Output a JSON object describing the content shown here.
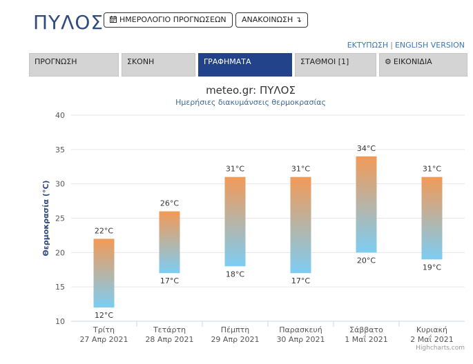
{
  "header": {
    "city": "ΠΥΛΟΣ",
    "calendar_button": "ΗΜΕΡΟΛΟΓΙΟ ΠΡΟΓΝΩΣΕΩΝ",
    "announcement_button": "ΑΝΑΚΟΙΝΩΣΗ ↴",
    "print_link": "ΕΚΤΥΠΩΣΗ",
    "separator": "|",
    "english_link": "ENGLISH VERSION"
  },
  "tabs": [
    {
      "label": "ΠΡΟΓΝΩΣΗ"
    },
    {
      "label": "ΣΚΟΝΗ"
    },
    {
      "label": "ΓΡΑΦΗΜΑΤΑ"
    },
    {
      "label": "ΣΤΑΘΜΟΙ [1]"
    },
    {
      "label": "ΕΙΚΟΝΙΔΙΑ"
    }
  ],
  "active_tab": 2,
  "colors": {
    "brand": "#2f4a7c",
    "active_tab": "#22428a",
    "bar_top": "#f29a57",
    "bar_bottom": "#7dcdf3",
    "link": "#3a76b8"
  },
  "chart_data": {
    "type": "bar",
    "title": "meteo.gr: ΠΥΛΟΣ",
    "subtitle": "Ημερήσιες διακυμάνσεις θερμοκρασίας",
    "ylabel": "Θερμοκρασία (°C)",
    "xlabel": "",
    "ylim": [
      10,
      40
    ],
    "yticks": [
      10,
      15,
      20,
      25,
      30,
      35,
      40
    ],
    "grid": true,
    "credit": "Highcharts.com",
    "categories": [
      [
        "Τρίτη",
        "27 Απρ 2021"
      ],
      [
        "Τετάρτη",
        "28 Απρ 2021"
      ],
      [
        "Πέμπτη",
        "29 Απρ 2021"
      ],
      [
        "Παρασκευή",
        "30 Απρ 2021"
      ],
      [
        "Σάββατο",
        "1 Μαΐ 2021"
      ],
      [
        "Κυριακή",
        "2 Μαΐ 2021"
      ]
    ],
    "series": [
      {
        "low": 12,
        "high": 22
      },
      {
        "low": 17,
        "high": 26
      },
      {
        "low": 18,
        "high": 31
      },
      {
        "low": 17,
        "high": 31
      },
      {
        "low": 20,
        "high": 34
      },
      {
        "low": 19,
        "high": 31
      }
    ],
    "unit": "°C"
  }
}
